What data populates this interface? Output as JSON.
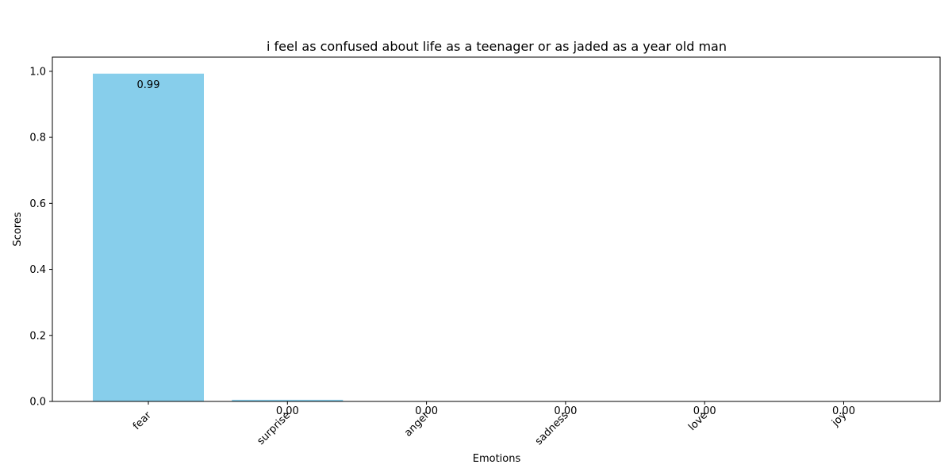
{
  "chart_data": {
    "type": "bar",
    "title": "i feel as confused about life as a teenager or as jaded as a year old man",
    "xlabel": "Emotions",
    "ylabel": "Scores",
    "categories": [
      "fear",
      "surprise",
      "anger",
      "sadness",
      "love",
      "joy"
    ],
    "values": [
      0.993,
      0.005,
      0.001,
      0.0005,
      0.0003,
      0.0002
    ],
    "data_labels": [
      "0.99",
      "0.00",
      "0.00",
      "0.00",
      "0.00",
      "0.00"
    ],
    "yticks": [
      "0.0",
      "0.2",
      "0.4",
      "0.6",
      "0.8",
      "1.0"
    ],
    "ytick_values": [
      0,
      0.2,
      0.4,
      0.6,
      0.8,
      1.0
    ],
    "ylim": [
      0,
      1.043
    ],
    "grid": false,
    "bar_color": "#87CEEB"
  }
}
